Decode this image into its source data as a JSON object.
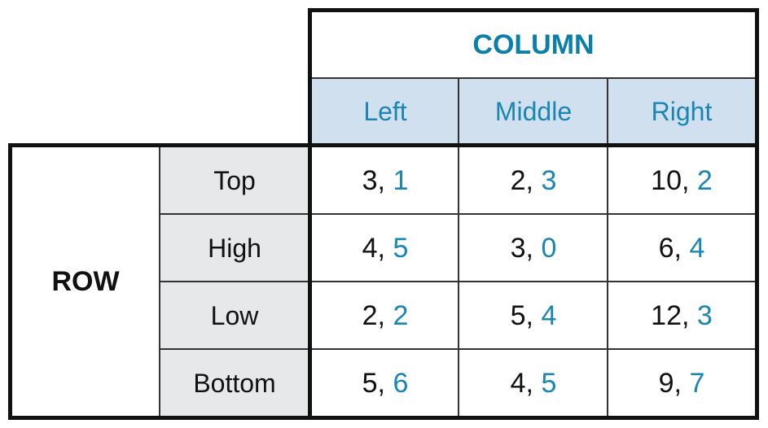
{
  "column_title": "COLUMN",
  "row_title": "ROW",
  "columns": [
    "Left",
    "Middle",
    "Right"
  ],
  "rows": [
    {
      "label": "Top",
      "cells": [
        {
          "a": "3",
          "b": "1"
        },
        {
          "a": "2",
          "b": "3"
        },
        {
          "a": "10",
          "b": "2"
        }
      ]
    },
    {
      "label": "High",
      "cells": [
        {
          "a": "4",
          "b": "5"
        },
        {
          "a": "3",
          "b": "0"
        },
        {
          "a": "6",
          "b": "4"
        }
      ]
    },
    {
      "label": "Low",
      "cells": [
        {
          "a": "2",
          "b": "2"
        },
        {
          "a": "5",
          "b": "4"
        },
        {
          "a": "12",
          "b": "3"
        }
      ]
    },
    {
      "label": "Bottom",
      "cells": [
        {
          "a": "5",
          "b": "6"
        },
        {
          "a": "4",
          "b": "5"
        },
        {
          "a": "9",
          "b": "7"
        }
      ]
    }
  ],
  "colors": {
    "row_player": "#111111",
    "column_player": "#1a86b3",
    "header_fill": "#d0e0ef",
    "row_label_fill": "#e7e8ea"
  }
}
